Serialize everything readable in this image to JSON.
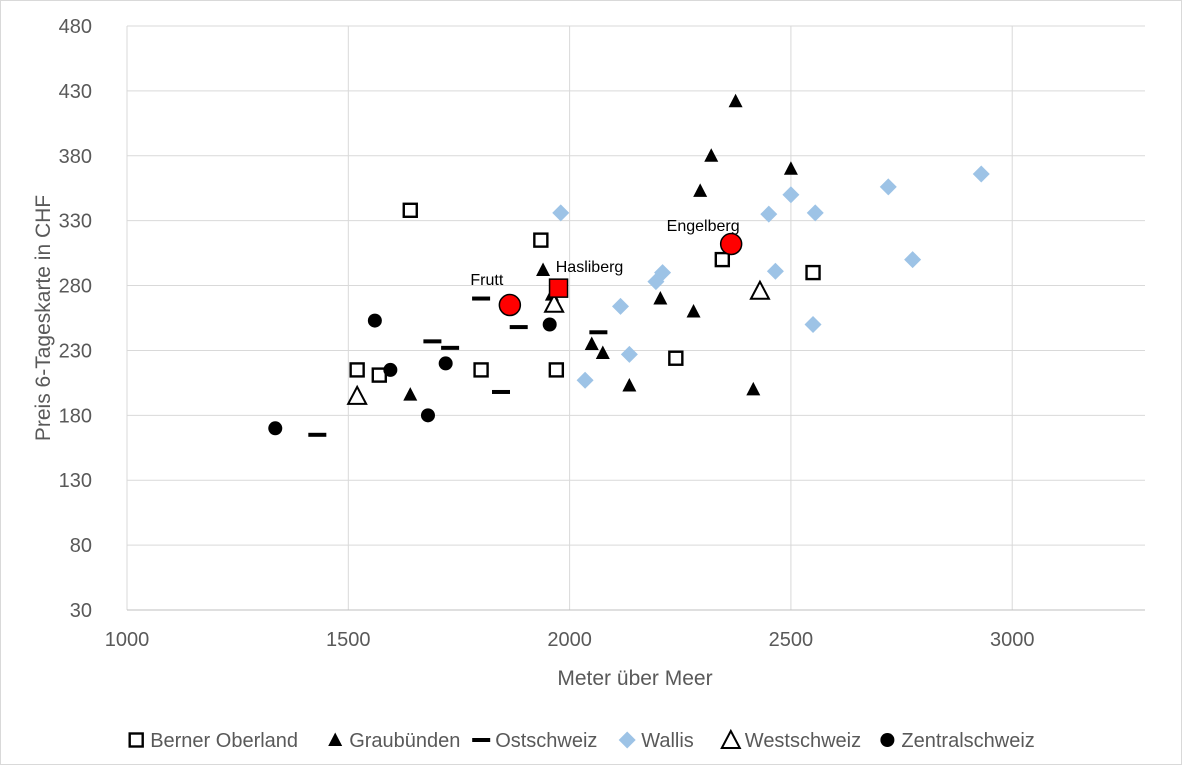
{
  "chart_data": {
    "type": "scatter",
    "title": "",
    "xlabel": "Meter über Meer",
    "ylabel": "Preis 6-Tageskarte in CHF",
    "xlim": [
      1000,
      3300
    ],
    "ylim": [
      30,
      480
    ],
    "xticks": [
      1000,
      1500,
      2000,
      2500,
      3000
    ],
    "yticks": [
      30,
      80,
      130,
      180,
      230,
      280,
      330,
      380,
      430,
      480
    ],
    "grid": true,
    "legend_position": "bottom",
    "series": [
      {
        "name": "Berner Oberland",
        "marker": "square-open",
        "color": "#000000",
        "points": [
          [
            1640,
            338
          ],
          [
            1935,
            315
          ],
          [
            1520,
            215
          ],
          [
            1570,
            211
          ],
          [
            1800,
            215
          ],
          [
            1970,
            215
          ],
          [
            2240,
            224
          ],
          [
            2345,
            300
          ],
          [
            2550,
            290
          ]
        ]
      },
      {
        "name": "Graubünden",
        "marker": "triangle-filled",
        "color": "#000000",
        "points": [
          [
            2375,
            422
          ],
          [
            2320,
            380
          ],
          [
            2500,
            370
          ],
          [
            2295,
            353
          ],
          [
            1940,
            292
          ],
          [
            1960,
            273
          ],
          [
            2205,
            270
          ],
          [
            2280,
            260
          ],
          [
            2050,
            235
          ],
          [
            2075,
            228
          ],
          [
            2135,
            203
          ],
          [
            2415,
            200
          ],
          [
            1640,
            196
          ]
        ]
      },
      {
        "name": "Ostschweiz",
        "marker": "dash",
        "color": "#000000",
        "points": [
          [
            1800,
            270
          ],
          [
            1885,
            248
          ],
          [
            2065,
            244
          ],
          [
            1690,
            237
          ],
          [
            1730,
            232
          ],
          [
            1845,
            198
          ],
          [
            1430,
            165
          ]
        ]
      },
      {
        "name": "Wallis",
        "marker": "diamond-filled",
        "color": "#9dc3e6",
        "points": [
          [
            2930,
            366
          ],
          [
            2720,
            356
          ],
          [
            2500,
            350
          ],
          [
            1980,
            336
          ],
          [
            2450,
            335
          ],
          [
            2555,
            336
          ],
          [
            2775,
            300
          ],
          [
            2210,
            290
          ],
          [
            2465,
            291
          ],
          [
            2195,
            283
          ],
          [
            2115,
            264
          ],
          [
            2550,
            250
          ],
          [
            2135,
            227
          ],
          [
            2035,
            207
          ]
        ]
      },
      {
        "name": "Westschweiz",
        "marker": "triangle-open",
        "color": "#000000",
        "points": [
          [
            2430,
            276
          ],
          [
            1965,
            266
          ],
          [
            1520,
            195
          ]
        ]
      },
      {
        "name": "Zentralschweiz",
        "marker": "circle-filled",
        "color": "#000000",
        "points": [
          [
            1560,
            253
          ],
          [
            1955,
            250
          ],
          [
            1595,
            215
          ],
          [
            1720,
            220
          ],
          [
            1680,
            180
          ],
          [
            1335,
            170
          ]
        ]
      }
    ],
    "highlights": [
      {
        "label": "Frutt",
        "marker": "circle-filled",
        "color": "#ff0000",
        "x": 1865,
        "y": 265
      },
      {
        "label": "Hasliberg",
        "marker": "square-filled",
        "color": "#ff0000",
        "x": 1975,
        "y": 278
      },
      {
        "label": "Engelberg",
        "marker": "circle-filled",
        "color": "#ff0000",
        "x": 2365,
        "y": 312
      }
    ]
  }
}
